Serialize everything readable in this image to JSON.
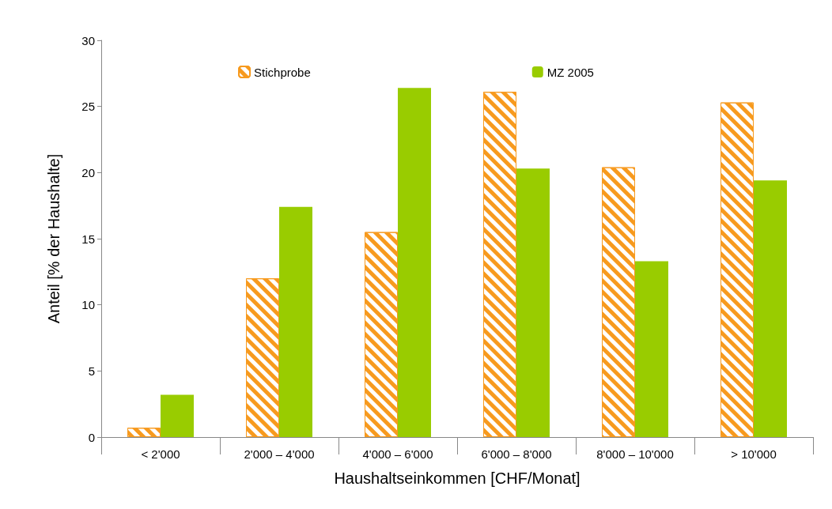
{
  "chart_data": {
    "type": "bar",
    "xlabel": "Haushaltseinkommen [CHF/Monat]",
    "ylabel": "Anteil [% der Haushalte]",
    "categories": [
      "< 2'000",
      "2'000 – 4'000",
      "4'000 – 6'000",
      "6'000 – 8'000",
      "8'000 – 10'000",
      "> 10'000"
    ],
    "series": [
      {
        "name": "Stichprobe",
        "color": "#f79a1e",
        "values": [
          0.7,
          12.0,
          15.5,
          26.1,
          20.4,
          25.3
        ]
      },
      {
        "name": "MZ 2005",
        "color": "#99cc00",
        "values": [
          3.2,
          17.4,
          26.4,
          20.3,
          13.3,
          19.4
        ]
      }
    ],
    "ylim": [
      0,
      30
    ],
    "yticks": [
      0,
      5,
      10,
      15,
      20,
      25,
      30
    ],
    "grid": false,
    "legend": "top"
  }
}
